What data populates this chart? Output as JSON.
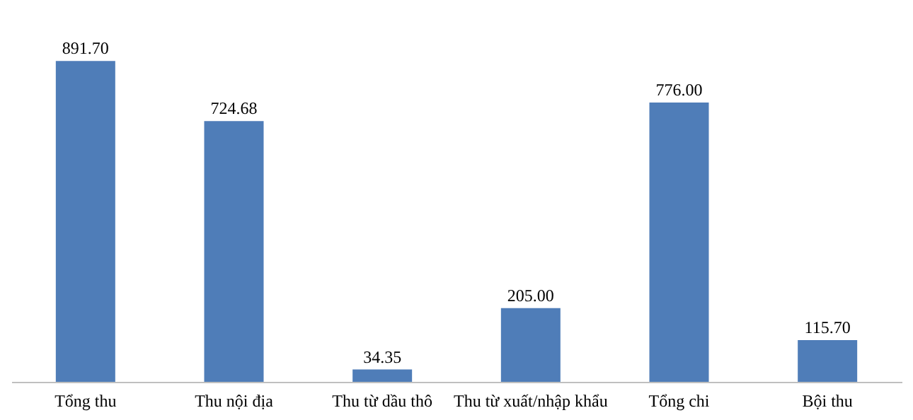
{
  "chart_data": {
    "type": "bar",
    "categories": [
      "Tổng thu",
      "Thu nội địa",
      "Thu từ dầu thô",
      "Thu từ xuất/nhập khẩu",
      "Tổng chi",
      "Bội thu"
    ],
    "values": [
      891.7,
      724.68,
      34.35,
      205.0,
      776.0,
      115.7
    ],
    "value_labels": [
      "891.70",
      "724.68",
      "34.35",
      "205.00",
      "776.00",
      "115.70"
    ],
    "color": "#4f7db8",
    "grid": false
  }
}
